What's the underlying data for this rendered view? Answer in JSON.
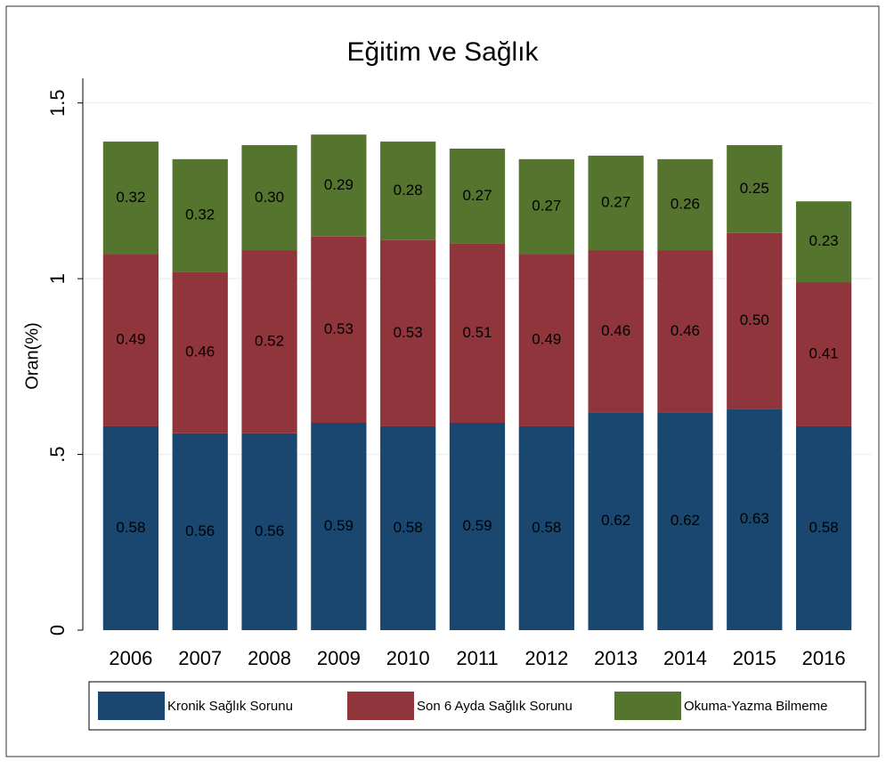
{
  "chart_data": {
    "type": "stacked_bar",
    "title": "Eğitim ve Sağlık",
    "y_label": "Oran(%)",
    "categories": [
      "2006",
      "2007",
      "2008",
      "2009",
      "2010",
      "2011",
      "2012",
      "2013",
      "2014",
      "2015",
      "2016"
    ],
    "series": [
      {
        "name": "Kronik Sağlık Sorunu",
        "color": "#1a476f",
        "values": [
          0.58,
          0.56,
          0.56,
          0.59,
          0.58,
          0.59,
          0.58,
          0.62,
          0.62,
          0.63,
          0.58
        ],
        "value_labels": [
          "0.58",
          "0.56",
          "0.56",
          "0.59",
          "0.58",
          "0.59",
          "0.58",
          "0.62",
          "0.62",
          "0.63",
          "0.58"
        ]
      },
      {
        "name": "Son 6 Ayda Sağlık Sorunu",
        "color": "#90353b",
        "values": [
          0.49,
          0.46,
          0.52,
          0.53,
          0.53,
          0.51,
          0.49,
          0.46,
          0.46,
          0.5,
          0.41
        ],
        "value_labels": [
          "0.49",
          "0.46",
          "0.52",
          "0.53",
          "0.53",
          "0.51",
          "0.49",
          "0.46",
          "0.46",
          "0.50",
          "0.41"
        ]
      },
      {
        "name": "Okuma-Yazma Bilmeme",
        "color": "#55752f",
        "values": [
          0.32,
          0.32,
          0.3,
          0.29,
          0.28,
          0.27,
          0.27,
          0.27,
          0.26,
          0.25,
          0.23
        ],
        "value_labels": [
          "0.32",
          "0.32",
          "0.30",
          "0.29",
          "0.28",
          "0.27",
          "0.27",
          "0.27",
          "0.26",
          "0.25",
          "0.23"
        ]
      }
    ],
    "ylim": [
      0,
      1.57
    ],
    "yticks": [
      0,
      {
        "value": 0.5,
        "label": ".5"
      },
      1,
      1.5
    ],
    "grid": true,
    "legend": "bottom"
  }
}
